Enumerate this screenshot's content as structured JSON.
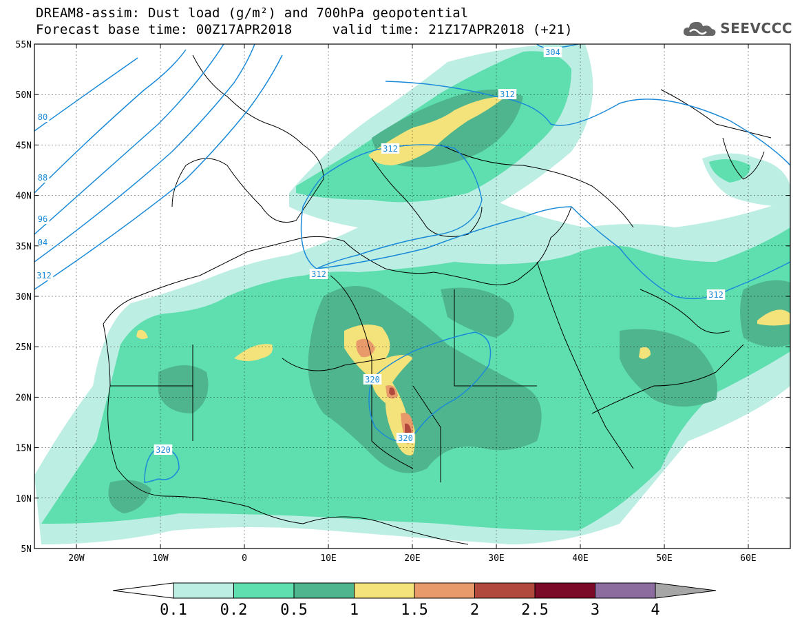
{
  "title_line1": "DREAM8-assim: Dust load (g/m²) and 700hPa geopotential",
  "title_line2": "Forecast base time: 00Z17APR2018     valid time: 21Z17APR2018 (+21)",
  "logo": {
    "text": "SEEVCCC",
    "icon": "cloud-icon"
  },
  "axes": {
    "lat_ticks": [
      "55N",
      "50N",
      "45N",
      "40N",
      "35N",
      "30N",
      "25N",
      "20N",
      "15N",
      "10N",
      "5N"
    ],
    "lon_ticks": [
      "20W",
      "10W",
      "0",
      "10E",
      "20E",
      "30E",
      "40E",
      "50E",
      "60E"
    ]
  },
  "contour_labels": [
    "304",
    "312",
    "312",
    "312",
    "312",
    "320",
    "320",
    "320",
    "80",
    "88",
    "96",
    "04",
    "312"
  ],
  "colorbar": {
    "labels": [
      "0.1",
      "0.2",
      "0.5",
      "1",
      "1.5",
      "2",
      "2.5",
      "3",
      "4"
    ],
    "colors": [
      "#ffffff",
      "#bdeee3",
      "#5fdfb0",
      "#4fb58e",
      "#f4e27a",
      "#e99a6a",
      "#b14a3c",
      "#7a0a28",
      "#8c6c9e",
      "#a6a6a6"
    ]
  },
  "colors": {
    "dust_01": "#bdeee3",
    "dust_02": "#5fdfb0",
    "dust_05": "#4fb58e",
    "dust_1": "#f4e27a",
    "dust_15": "#e99a6a",
    "dust_2": "#b14a3c",
    "dust_25": "#7a0a28",
    "geopotential": "#1a8ad8"
  }
}
